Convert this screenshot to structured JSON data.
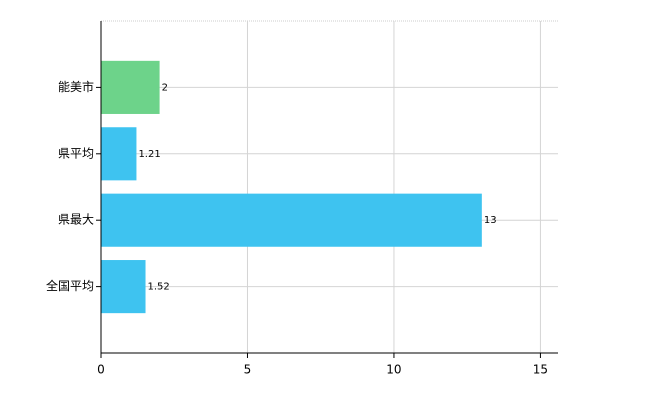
{
  "chart_data": {
    "type": "hbar",
    "categories": [
      "能美市",
      "県平均",
      "県最大",
      "全国平均"
    ],
    "values": [
      2,
      1.21,
      13,
      1.52
    ],
    "colors": [
      "#6dd38a",
      "#3ec3f0",
      "#3ec3f0",
      "#3ec3f0"
    ],
    "xlim": [
      0,
      15.6
    ],
    "xticks": [
      0,
      5,
      10,
      15
    ],
    "grid": true
  }
}
